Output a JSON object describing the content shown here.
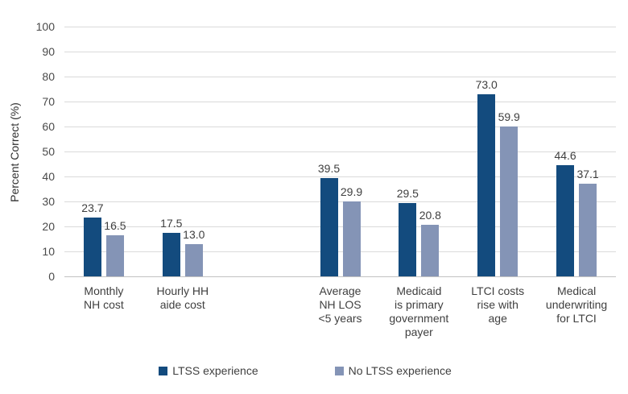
{
  "chart_data": {
    "type": "bar",
    "title": "",
    "ylabel": "Percent Correct (%)",
    "xlabel": "",
    "ylim": [
      0,
      100
    ],
    "ytick_step": 10,
    "grid": true,
    "legend_position": "bottom",
    "value_label_decimals": 1,
    "categories": [
      "Monthly NH cost",
      "Hourly HH aide cost",
      "Average NH LOS <5 years",
      "Medicaid is primary government payer",
      "LTCI costs rise with age",
      "Medical underwriting for LTCI"
    ],
    "category_lines": [
      [
        "Monthly",
        "NH cost"
      ],
      [
        "Hourly HH",
        "aide cost"
      ],
      [
        "Average",
        "NH LOS",
        "<5 years"
      ],
      [
        "Medicaid",
        "is primary",
        "government",
        "payer"
      ],
      [
        "LTCI costs",
        "rise with",
        "age"
      ],
      [
        "Medical",
        "underwriting",
        "for LTCI"
      ]
    ],
    "series": [
      {
        "name": "LTSS experience",
        "color": "#134B7E",
        "values": [
          23.7,
          17.5,
          39.5,
          29.5,
          73.0,
          44.6
        ]
      },
      {
        "name": "No LTSS experience",
        "color": "#8494B6",
        "values": [
          16.5,
          13.0,
          29.9,
          20.8,
          59.9,
          37.1
        ]
      }
    ],
    "layout_hints": {
      "n_slots": 7,
      "slot_positions": [
        0,
        1,
        3,
        4,
        5,
        6
      ],
      "gridline_color": "#DADADA",
      "axis_color": "#C2C2C2",
      "text_color": "#3f3f3f"
    }
  }
}
